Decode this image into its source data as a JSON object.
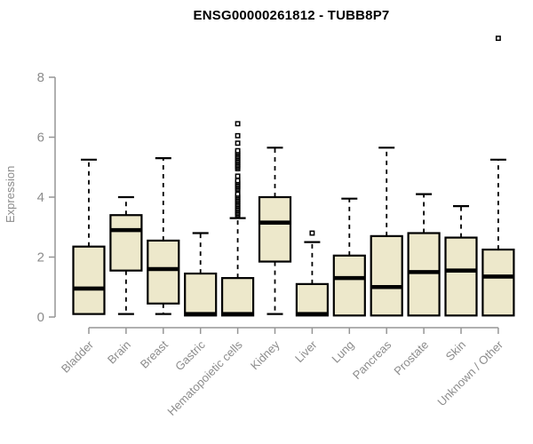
{
  "title": "ENSG00000261812 - TUBB8P7",
  "chart_data": {
    "type": "boxplot",
    "title": "ENSG00000261812 - TUBB8P7",
    "xlabel": "",
    "ylabel": "Expression",
    "ylim": [
      0,
      8
    ],
    "yticks": [
      0,
      2,
      4,
      6,
      8
    ],
    "grid": false,
    "legend": "none",
    "categories": [
      "Bladder",
      "Brain",
      "Breast",
      "Gastric",
      "Hematopoietic cells",
      "Kidney",
      "Liver",
      "Lung",
      "Pancreas",
      "Prostate",
      "Skin",
      "Unknown / Other"
    ],
    "series": [
      {
        "name": "Bladder",
        "whisker_low": 0.1,
        "q1": 0.1,
        "median": 0.95,
        "q3": 2.35,
        "whisker_high": 5.25,
        "outliers": []
      },
      {
        "name": "Brain",
        "whisker_low": 0.1,
        "q1": 1.55,
        "median": 2.9,
        "q3": 3.4,
        "whisker_high": 4.0,
        "outliers": []
      },
      {
        "name": "Breast",
        "whisker_low": 0.1,
        "q1": 0.45,
        "median": 1.6,
        "q3": 2.55,
        "whisker_high": 5.3,
        "outliers": []
      },
      {
        "name": "Gastric",
        "whisker_low": 0.05,
        "q1": 0.05,
        "median": 0.1,
        "q3": 1.45,
        "whisker_high": 2.8,
        "outliers": []
      },
      {
        "name": "Hematopoietic cells",
        "whisker_low": 0.05,
        "q1": 0.05,
        "median": 0.1,
        "q3": 1.3,
        "whisker_high": 3.3,
        "outliers": [
          3.4,
          3.45,
          3.5,
          3.55,
          3.6,
          3.65,
          3.7,
          3.75,
          3.8,
          3.85,
          3.9,
          3.95,
          4.0,
          4.05,
          4.1,
          4.25,
          4.3,
          4.35,
          4.4,
          4.45,
          4.5,
          4.55,
          4.7,
          4.95,
          5.0,
          5.05,
          5.1,
          5.15,
          5.2,
          5.25,
          5.3,
          5.35,
          5.4,
          5.45,
          5.5,
          5.55,
          5.8,
          6.05,
          6.45
        ]
      },
      {
        "name": "Kidney",
        "whisker_low": 0.1,
        "q1": 1.85,
        "median": 3.15,
        "q3": 4.0,
        "whisker_high": 5.65,
        "outliers": []
      },
      {
        "name": "Liver",
        "whisker_low": 0.05,
        "q1": 0.05,
        "median": 0.1,
        "q3": 1.1,
        "whisker_high": 2.5,
        "outliers": [
          2.8
        ]
      },
      {
        "name": "Lung",
        "whisker_low": 0.05,
        "q1": 0.05,
        "median": 1.3,
        "q3": 2.05,
        "whisker_high": 3.95,
        "outliers": []
      },
      {
        "name": "Pancreas",
        "whisker_low": 0.05,
        "q1": 0.05,
        "median": 1.0,
        "q3": 2.7,
        "whisker_high": 5.65,
        "outliers": []
      },
      {
        "name": "Prostate",
        "whisker_low": 0.05,
        "q1": 0.05,
        "median": 1.5,
        "q3": 2.8,
        "whisker_high": 4.1,
        "outliers": []
      },
      {
        "name": "Skin",
        "whisker_low": 0.05,
        "q1": 0.05,
        "median": 1.55,
        "q3": 2.65,
        "whisker_high": 3.7,
        "outliers": []
      },
      {
        "name": "Unknown / Other",
        "whisker_low": 0.05,
        "q1": 0.05,
        "median": 1.35,
        "q3": 2.25,
        "whisker_high": 5.25,
        "outliers": [
          9.3
        ]
      }
    ],
    "style": {
      "box_fill": "#ede8cb",
      "box_border": "#000000",
      "median_color": "#000000",
      "whisker_color": "#000000",
      "outlier_fill": "#ffffff",
      "axis_color": "#969696",
      "label_color": "#8c8c8c",
      "title_color": "#000000",
      "background": "#ffffff"
    }
  }
}
